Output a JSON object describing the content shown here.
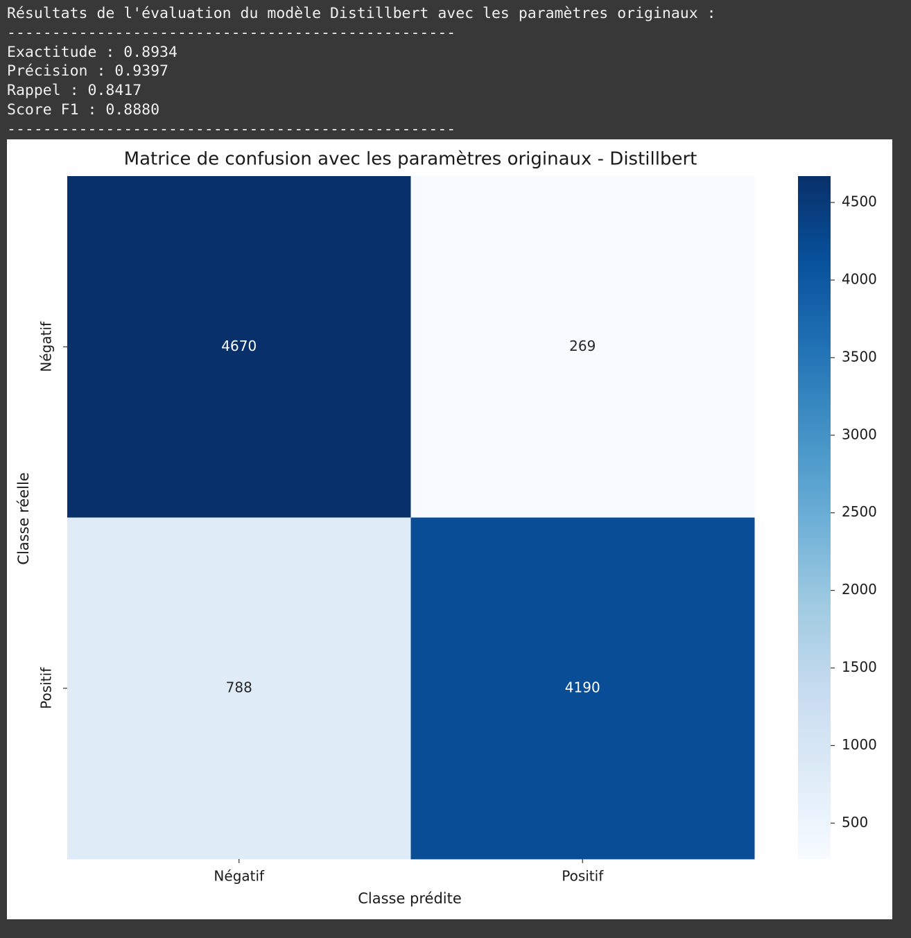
{
  "console_lines": [
    "Résultats de l'évaluation du modèle Distillbert avec les paramètres originaux :",
    "--------------------------------------------------",
    "Exactitude : 0.8934",
    "Précision : 0.9397",
    "Rappel : 0.8417",
    "Score F1 : 0.8880",
    "--------------------------------------------------"
  ],
  "chart_data": {
    "type": "heatmap",
    "title": "Matrice de confusion avec les paramètres originaux - Distillbert",
    "x_label": "Classe prédite",
    "y_label": "Classe réelle",
    "x_categories": [
      "Négatif",
      "Positif"
    ],
    "y_categories": [
      "Négatif",
      "Positif"
    ],
    "values": [
      [
        4670,
        269
      ],
      [
        788,
        4190
      ]
    ],
    "colormap": "Blues",
    "clim": [
      269,
      4670
    ],
    "cticks": [
      500,
      1000,
      1500,
      2000,
      2500,
      3000,
      3500,
      4000,
      4500
    ]
  }
}
